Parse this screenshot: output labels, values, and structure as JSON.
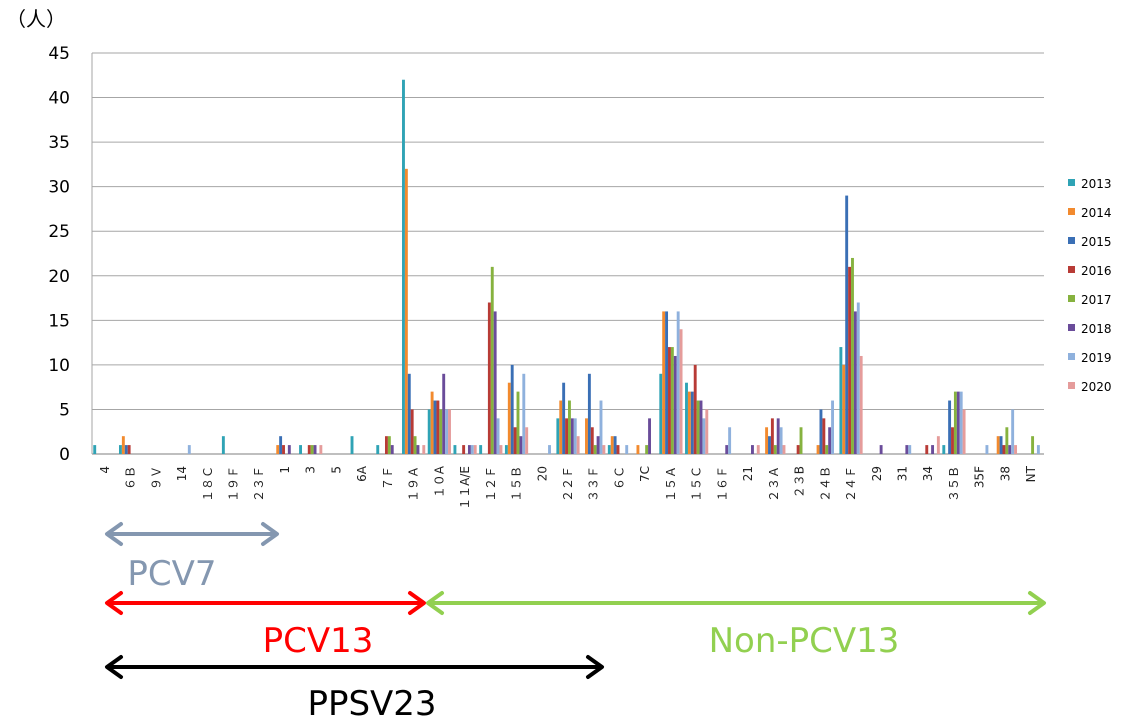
{
  "chart_data": {
    "type": "bar",
    "title": "",
    "ylabel": "（人）",
    "xlabel": "",
    "ylim": [
      0,
      45
    ],
    "yticks": [
      0,
      5,
      10,
      15,
      20,
      25,
      30,
      35,
      40,
      45
    ],
    "grid": true,
    "legend_position": "right",
    "categories": [
      "4",
      "6B",
      "9V",
      "14",
      "18C",
      "19F",
      "23F",
      "1",
      "3",
      "5",
      "6A",
      "7F",
      "19A",
      "10A",
      "11A/E",
      "12F",
      "15B",
      "20",
      "22F",
      "33F",
      "6C",
      "7C",
      "15A",
      "15C",
      "16F",
      "21",
      "23A",
      "23B",
      "24B",
      "24F",
      "29",
      "31",
      "34",
      "35B",
      "35F",
      "38",
      "NT"
    ],
    "category_labels": [
      "4",
      "６Ｂ",
      "９Ｖ",
      "14",
      "１８Ｃ",
      "１９Ｆ",
      "２３Ｆ",
      "1",
      "3",
      "5",
      "6A",
      "７Ｆ",
      "１９Ａ",
      "１０A",
      "１１A/E",
      "１２Ｆ",
      "１５Ｂ",
      "20",
      "２２Ｆ",
      "３３Ｆ",
      "６Ｃ",
      "7C",
      "１５Ａ",
      "１５Ｃ",
      "１６Ｆ",
      "21",
      "２３Ａ",
      "２３B",
      "２４Ｂ",
      "２４Ｆ",
      "29",
      "31",
      "34",
      "３５Ｂ",
      "35F",
      "38",
      "NT"
    ],
    "series": [
      {
        "name": "2013",
        "color": "#2fa3b5",
        "values": [
          1,
          1,
          0,
          0,
          0,
          2,
          0,
          0,
          1,
          0,
          2,
          1,
          42,
          5,
          1,
          1,
          1,
          0,
          4,
          0,
          1,
          0,
          9,
          8,
          0,
          0,
          0,
          0,
          0,
          12,
          0,
          0,
          0,
          1,
          0,
          0,
          0
        ]
      },
      {
        "name": "2014",
        "color": "#f28a2e",
        "values": [
          0,
          2,
          0,
          0,
          0,
          0,
          0,
          1,
          0,
          0,
          0,
          0,
          32,
          7,
          0,
          0,
          8,
          0,
          6,
          4,
          2,
          1,
          16,
          7,
          0,
          0,
          3,
          0,
          1,
          10,
          0,
          0,
          0,
          0,
          0,
          2,
          0
        ]
      },
      {
        "name": "2015",
        "color": "#3a6fb5",
        "values": [
          0,
          1,
          0,
          0,
          0,
          0,
          0,
          2,
          0,
          0,
          0,
          0,
          9,
          6,
          0,
          0,
          10,
          0,
          8,
          9,
          2,
          0,
          16,
          7,
          0,
          0,
          2,
          0,
          5,
          29,
          0,
          0,
          0,
          6,
          0,
          2,
          0
        ]
      },
      {
        "name": "2016",
        "color": "#b83b36",
        "values": [
          0,
          1,
          0,
          0,
          0,
          0,
          0,
          1,
          1,
          0,
          0,
          2,
          5,
          6,
          1,
          17,
          3,
          0,
          4,
          3,
          1,
          0,
          12,
          10,
          0,
          0,
          4,
          1,
          4,
          21,
          0,
          0,
          1,
          3,
          0,
          1,
          0
        ]
      },
      {
        "name": "2017",
        "color": "#86b23f",
        "values": [
          0,
          0,
          0,
          0,
          0,
          0,
          0,
          0,
          1,
          0,
          0,
          2,
          2,
          5,
          0,
          21,
          7,
          0,
          6,
          1,
          0,
          1,
          12,
          6,
          0,
          0,
          1,
          3,
          1,
          22,
          0,
          0,
          0,
          7,
          0,
          3,
          2
        ]
      },
      {
        "name": "2018",
        "color": "#6a4c9a",
        "values": [
          0,
          0,
          0,
          0,
          0,
          0,
          0,
          1,
          1,
          0,
          0,
          1,
          1,
          9,
          1,
          16,
          2,
          0,
          4,
          2,
          0,
          4,
          11,
          6,
          1,
          1,
          4,
          0,
          3,
          16,
          1,
          1,
          1,
          7,
          0,
          1,
          0
        ]
      },
      {
        "name": "2019",
        "color": "#8fb1dd",
        "values": [
          0,
          0,
          0,
          1,
          0,
          0,
          0,
          0,
          0,
          0,
          0,
          0,
          0,
          5,
          1,
          4,
          9,
          1,
          4,
          6,
          1,
          0,
          16,
          4,
          3,
          0,
          3,
          0,
          6,
          17,
          0,
          1,
          0,
          7,
          1,
          5,
          1
        ]
      },
      {
        "name": "2020",
        "color": "#e59c9b",
        "values": [
          0,
          0,
          0,
          0,
          0,
          0,
          0,
          0,
          1,
          0,
          0,
          0,
          1,
          5,
          1,
          1,
          3,
          0,
          2,
          1,
          0,
          0,
          14,
          5,
          0,
          1,
          1,
          0,
          0,
          11,
          0,
          0,
          2,
          5,
          0,
          1,
          0
        ]
      }
    ]
  },
  "groups": {
    "pcv7": {
      "label": "PCV7",
      "color": "#8497b0"
    },
    "pcv13": {
      "label": "PCV13",
      "color": "#ff0000"
    },
    "non_pcv13": {
      "label": "Non-PCV13",
      "color": "#92d050"
    },
    "ppsv23": {
      "label": "PPSV23",
      "color": "#000000"
    }
  }
}
